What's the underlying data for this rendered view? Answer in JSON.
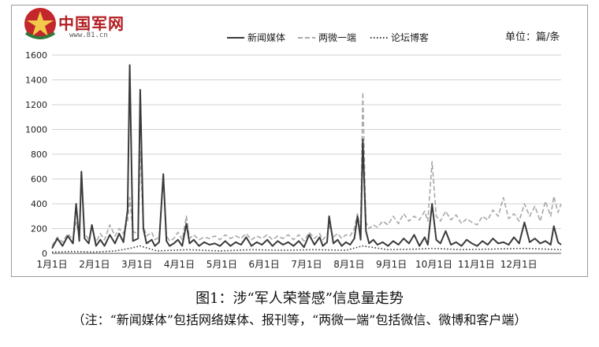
{
  "logo": {
    "name": "中国军网",
    "url": "www.81.cn",
    "icon": "army-star-emblem-icon"
  },
  "unit_label": "单位：篇/条",
  "caption": {
    "title": "图1：涉“军人荣誉感”信息量走势",
    "note": "（注：“新闻媒体”包括网络媒体、报刊等，“两微一端”包括微信、微博和客户端）"
  },
  "chart_data": {
    "type": "line",
    "title": "",
    "xlabel": "",
    "ylabel": "",
    "ylim": [
      0,
      1600
    ],
    "yticks": [
      0,
      200,
      400,
      600,
      800,
      1000,
      1200,
      1400,
      1600
    ],
    "grid": true,
    "legend": "top-center",
    "months": [
      "1月1日",
      "2月1日",
      "3月1日",
      "4月1日",
      "5月1日",
      "6月1日",
      "7月1日",
      "8月1日",
      "9月1日",
      "10月1日",
      "11月1日",
      "12月1日"
    ],
    "series": [
      {
        "name": "新闻媒体",
        "style": "solid",
        "color": "#3a3a3a",
        "points": [
          [
            0,
            40
          ],
          [
            5,
            120
          ],
          [
            10,
            60
          ],
          [
            15,
            140
          ],
          [
            20,
            80
          ],
          [
            23,
            400
          ],
          [
            26,
            100
          ],
          [
            28,
            660
          ],
          [
            31,
            120
          ],
          [
            35,
            80
          ],
          [
            38,
            230
          ],
          [
            42,
            60
          ],
          [
            46,
            110
          ],
          [
            50,
            60
          ],
          [
            55,
            150
          ],
          [
            60,
            80
          ],
          [
            64,
            160
          ],
          [
            68,
            90
          ],
          [
            72,
            350
          ],
          [
            74,
            1520
          ],
          [
            77,
            100
          ],
          [
            82,
            120
          ],
          [
            84,
            1320
          ],
          [
            87,
            200
          ],
          [
            90,
            80
          ],
          [
            95,
            110
          ],
          [
            98,
            60
          ],
          [
            102,
            90
          ],
          [
            106,
            640
          ],
          [
            109,
            100
          ],
          [
            112,
            60
          ],
          [
            116,
            80
          ],
          [
            120,
            110
          ],
          [
            124,
            60
          ],
          [
            128,
            240
          ],
          [
            131,
            80
          ],
          [
            135,
            110
          ],
          [
            140,
            60
          ],
          [
            145,
            90
          ],
          [
            150,
            70
          ],
          [
            155,
            80
          ],
          [
            160,
            60
          ],
          [
            165,
            100
          ],
          [
            170,
            60
          ],
          [
            175,
            90
          ],
          [
            180,
            70
          ],
          [
            185,
            130
          ],
          [
            190,
            60
          ],
          [
            195,
            90
          ],
          [
            200,
            70
          ],
          [
            205,
            110
          ],
          [
            210,
            60
          ],
          [
            215,
            100
          ],
          [
            220,
            70
          ],
          [
            225,
            90
          ],
          [
            230,
            60
          ],
          [
            235,
            100
          ],
          [
            240,
            50
          ],
          [
            245,
            150
          ],
          [
            250,
            70
          ],
          [
            255,
            130
          ],
          [
            258,
            60
          ],
          [
            262,
            90
          ],
          [
            264,
            300
          ],
          [
            268,
            80
          ],
          [
            272,
            110
          ],
          [
            276,
            60
          ],
          [
            280,
            90
          ],
          [
            284,
            70
          ],
          [
            288,
            120
          ],
          [
            291,
            300
          ],
          [
            294,
            110
          ],
          [
            296,
            920
          ],
          [
            299,
            180
          ],
          [
            302,
            80
          ],
          [
            306,
            110
          ],
          [
            310,
            70
          ],
          [
            315,
            90
          ],
          [
            320,
            60
          ],
          [
            325,
            100
          ],
          [
            330,
            70
          ],
          [
            335,
            120
          ],
          [
            340,
            80
          ],
          [
            345,
            150
          ],
          [
            350,
            60
          ],
          [
            355,
            130
          ],
          [
            358,
            70
          ],
          [
            362,
            400
          ],
          [
            366,
            110
          ],
          [
            370,
            80
          ],
          [
            375,
            180
          ],
          [
            380,
            70
          ],
          [
            385,
            90
          ],
          [
            390,
            60
          ],
          [
            395,
            110
          ],
          [
            400,
            80
          ],
          [
            405,
            60
          ],
          [
            410,
            100
          ],
          [
            415,
            70
          ],
          [
            420,
            120
          ],
          [
            425,
            80
          ],
          [
            430,
            90
          ],
          [
            435,
            70
          ],
          [
            440,
            130
          ],
          [
            445,
            80
          ],
          [
            450,
            250
          ],
          [
            455,
            90
          ],
          [
            460,
            120
          ],
          [
            465,
            80
          ],
          [
            470,
            100
          ],
          [
            475,
            70
          ],
          [
            478,
            220
          ],
          [
            482,
            90
          ],
          [
            485,
            70
          ]
        ]
      },
      {
        "name": "两微一端",
        "style": "dashed",
        "color": "#a8a8a8",
        "points": [
          [
            0,
            60
          ],
          [
            5,
            130
          ],
          [
            10,
            90
          ],
          [
            15,
            160
          ],
          [
            20,
            110
          ],
          [
            23,
            250
          ],
          [
            26,
            140
          ],
          [
            28,
            640
          ],
          [
            31,
            160
          ],
          [
            35,
            110
          ],
          [
            38,
            210
          ],
          [
            42,
            90
          ],
          [
            46,
            160
          ],
          [
            50,
            110
          ],
          [
            55,
            230
          ],
          [
            60,
            140
          ],
          [
            64,
            200
          ],
          [
            68,
            160
          ],
          [
            72,
            260
          ],
          [
            74,
            450
          ],
          [
            77,
            180
          ],
          [
            82,
            150
          ],
          [
            84,
            830
          ],
          [
            87,
            220
          ],
          [
            90,
            140
          ],
          [
            95,
            170
          ],
          [
            98,
            110
          ],
          [
            102,
            130
          ],
          [
            106,
            620
          ],
          [
            109,
            140
          ],
          [
            112,
            100
          ],
          [
            116,
            120
          ],
          [
            120,
            170
          ],
          [
            124,
            110
          ],
          [
            128,
            300
          ],
          [
            131,
            120
          ],
          [
            135,
            150
          ],
          [
            140,
            110
          ],
          [
            145,
            130
          ],
          [
            150,
            120
          ],
          [
            155,
            140
          ],
          [
            160,
            110
          ],
          [
            165,
            150
          ],
          [
            170,
            120
          ],
          [
            175,
            140
          ],
          [
            180,
            120
          ],
          [
            185,
            160
          ],
          [
            190,
            110
          ],
          [
            195,
            140
          ],
          [
            200,
            120
          ],
          [
            205,
            150
          ],
          [
            210,
            110
          ],
          [
            215,
            140
          ],
          [
            220,
            120
          ],
          [
            225,
            150
          ],
          [
            230,
            110
          ],
          [
            235,
            150
          ],
          [
            240,
            100
          ],
          [
            245,
            170
          ],
          [
            250,
            120
          ],
          [
            255,
            160
          ],
          [
            258,
            110
          ],
          [
            262,
            150
          ],
          [
            264,
            220
          ],
          [
            268,
            130
          ],
          [
            272,
            160
          ],
          [
            276,
            120
          ],
          [
            280,
            150
          ],
          [
            284,
            140
          ],
          [
            288,
            200
          ],
          [
            291,
            320
          ],
          [
            294,
            200
          ],
          [
            296,
            1300
          ],
          [
            299,
            250
          ],
          [
            302,
            200
          ],
          [
            306,
            230
          ],
          [
            310,
            210
          ],
          [
            315,
            260
          ],
          [
            320,
            230
          ],
          [
            325,
            300
          ],
          [
            330,
            240
          ],
          [
            335,
            320
          ],
          [
            340,
            260
          ],
          [
            345,
            300
          ],
          [
            350,
            270
          ],
          [
            355,
            340
          ],
          [
            358,
            260
          ],
          [
            362,
            740
          ],
          [
            366,
            300
          ],
          [
            370,
            260
          ],
          [
            375,
            340
          ],
          [
            380,
            270
          ],
          [
            385,
            310
          ],
          [
            390,
            240
          ],
          [
            395,
            280
          ],
          [
            400,
            250
          ],
          [
            405,
            230
          ],
          [
            410,
            300
          ],
          [
            415,
            270
          ],
          [
            420,
            350
          ],
          [
            425,
            300
          ],
          [
            430,
            450
          ],
          [
            435,
            280
          ],
          [
            440,
            320
          ],
          [
            445,
            260
          ],
          [
            450,
            400
          ],
          [
            455,
            300
          ],
          [
            460,
            380
          ],
          [
            465,
            260
          ],
          [
            470,
            420
          ],
          [
            475,
            300
          ],
          [
            478,
            460
          ],
          [
            482,
            330
          ],
          [
            485,
            400
          ]
        ]
      },
      {
        "name": "论坛博客",
        "style": "dotted",
        "color": "#333333",
        "points": [
          [
            0,
            10
          ],
          [
            20,
            15
          ],
          [
            40,
            10
          ],
          [
            60,
            20
          ],
          [
            74,
            40
          ],
          [
            84,
            60
          ],
          [
            100,
            20
          ],
          [
            130,
            30
          ],
          [
            160,
            20
          ],
          [
            190,
            30
          ],
          [
            220,
            25
          ],
          [
            250,
            30
          ],
          [
            280,
            25
          ],
          [
            296,
            60
          ],
          [
            320,
            30
          ],
          [
            350,
            35
          ],
          [
            362,
            40
          ],
          [
            390,
            30
          ],
          [
            420,
            35
          ],
          [
            450,
            40
          ],
          [
            485,
            30
          ]
        ]
      }
    ]
  }
}
